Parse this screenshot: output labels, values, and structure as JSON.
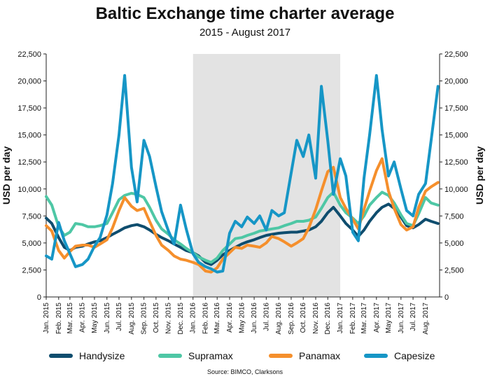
{
  "chart_data": {
    "type": "line",
    "title": "Baltic Exchange time charter average",
    "subtitle": "2015 - August 2017",
    "ylabel_left": "USD per day",
    "ylabel_right": "USD per day",
    "ylim": [
      0,
      22500
    ],
    "yticks": [
      "0",
      "2,500",
      "5,000",
      "7,500",
      "10,000",
      "12,500",
      "15,000",
      "17,500",
      "20,000",
      "22,500"
    ],
    "xlim": [
      "2015-01-01",
      "2017-09-05"
    ],
    "xticks": [
      {
        "label": "Jan. 2015",
        "date": "2015-01-01"
      },
      {
        "label": "Feb. 2015",
        "date": "2015-02-01"
      },
      {
        "label": "Mar. 2015",
        "date": "2015-03-01"
      },
      {
        "label": "Apr. 2015",
        "date": "2015-04-01"
      },
      {
        "label": "May 2015",
        "date": "2015-05-01"
      },
      {
        "label": "Jun. 2015",
        "date": "2015-06-01"
      },
      {
        "label": "Jul. 2015",
        "date": "2015-07-01"
      },
      {
        "label": "Aug. 2015",
        "date": "2015-08-01"
      },
      {
        "label": "Sep. 2015",
        "date": "2015-09-01"
      },
      {
        "label": "Oct. 2015",
        "date": "2015-10-01"
      },
      {
        "label": "Nov. 2015",
        "date": "2015-11-01"
      },
      {
        "label": "Dec. 2015",
        "date": "2015-12-01"
      },
      {
        "label": "Jan. 2016",
        "date": "2016-01-01"
      },
      {
        "label": "Feb. 2016",
        "date": "2016-02-01"
      },
      {
        "label": "Mar. 2016",
        "date": "2016-03-01"
      },
      {
        "label": "Apr. 2016",
        "date": "2016-04-01"
      },
      {
        "label": "May 2016",
        "date": "2016-05-01"
      },
      {
        "label": "Jun. 2016",
        "date": "2016-06-01"
      },
      {
        "label": "Jul. 2016",
        "date": "2016-07-01"
      },
      {
        "label": "Aug. 2016",
        "date": "2016-08-01"
      },
      {
        "label": "Sep. 2016",
        "date": "2016-09-01"
      },
      {
        "label": "Oct. 2016",
        "date": "2016-10-01"
      },
      {
        "label": "Nov. 2016",
        "date": "2016-11-01"
      },
      {
        "label": "Dec. 2016",
        "date": "2016-12-01"
      },
      {
        "label": "Jan. 2017",
        "date": "2017-01-01"
      },
      {
        "label": "Feb. 2017",
        "date": "2017-02-01"
      },
      {
        "label": "Mar. 2017",
        "date": "2017-03-01"
      },
      {
        "label": "Apr. 2017",
        "date": "2017-04-01"
      },
      {
        "label": "May 2017",
        "date": "2017-05-01"
      },
      {
        "label": "Jun. 2017",
        "date": "2017-06-01"
      },
      {
        "label": "Jul. 2017",
        "date": "2017-07-01"
      },
      {
        "label": "Aug. 2017",
        "date": "2017-08-01"
      }
    ],
    "shaded_period": [
      "2016-01-01",
      "2017-01-01"
    ],
    "grid": false,
    "legend_position": "bottom",
    "series": [
      {
        "name": "Handysize",
        "color": "#0f4d6e",
        "x": [
          "2015-01-01",
          "2015-01-15",
          "2015-02-01",
          "2015-02-15",
          "2015-03-01",
          "2015-03-15",
          "2015-04-01",
          "2015-04-15",
          "2015-05-01",
          "2015-05-15",
          "2015-06-01",
          "2015-06-15",
          "2015-07-01",
          "2015-07-15",
          "2015-08-01",
          "2015-08-15",
          "2015-09-01",
          "2015-09-15",
          "2015-10-01",
          "2015-10-15",
          "2015-11-01",
          "2015-11-15",
          "2015-12-01",
          "2015-12-15",
          "2016-01-01",
          "2016-01-15",
          "2016-02-01",
          "2016-02-15",
          "2016-03-01",
          "2016-03-15",
          "2016-04-01",
          "2016-04-15",
          "2016-05-01",
          "2016-05-15",
          "2016-06-01",
          "2016-06-15",
          "2016-07-01",
          "2016-07-15",
          "2016-08-01",
          "2016-08-15",
          "2016-09-01",
          "2016-09-15",
          "2016-10-01",
          "2016-10-15",
          "2016-11-01",
          "2016-11-15",
          "2016-12-01",
          "2016-12-15",
          "2017-01-01",
          "2017-01-15",
          "2017-02-01",
          "2017-02-15",
          "2017-03-01",
          "2017-03-15",
          "2017-04-01",
          "2017-04-15",
          "2017-05-01",
          "2017-05-15",
          "2017-06-01",
          "2017-06-15",
          "2017-07-01",
          "2017-07-15",
          "2017-08-01",
          "2017-08-15",
          "2017-09-01"
        ],
        "y": [
          7300,
          6800,
          5500,
          4600,
          4300,
          4600,
          4700,
          4900,
          5100,
          5200,
          5500,
          5800,
          6100,
          6400,
          6600,
          6700,
          6500,
          6200,
          5800,
          5500,
          5200,
          4900,
          4600,
          4300,
          4100,
          3800,
          3200,
          3000,
          3400,
          3900,
          4300,
          4600,
          4900,
          5100,
          5300,
          5500,
          5700,
          5800,
          5900,
          5950,
          6000,
          6000,
          6100,
          6200,
          6500,
          7000,
          7800,
          8300,
          7500,
          6800,
          6200,
          5600,
          6200,
          7000,
          7800,
          8300,
          8600,
          8200,
          7400,
          6600,
          6400,
          6700,
          7200,
          7000,
          6800
        ]
      },
      {
        "name": "Supramax",
        "color": "#4ec7a5",
        "x": [
          "2015-01-01",
          "2015-01-15",
          "2015-02-01",
          "2015-02-15",
          "2015-03-01",
          "2015-03-15",
          "2015-04-01",
          "2015-04-15",
          "2015-05-01",
          "2015-05-15",
          "2015-06-01",
          "2015-06-15",
          "2015-07-01",
          "2015-07-15",
          "2015-08-01",
          "2015-08-15",
          "2015-09-01",
          "2015-09-15",
          "2015-10-01",
          "2015-10-15",
          "2015-11-01",
          "2015-11-15",
          "2015-12-01",
          "2015-12-15",
          "2016-01-01",
          "2016-01-15",
          "2016-02-01",
          "2016-02-15",
          "2016-03-01",
          "2016-03-15",
          "2016-04-01",
          "2016-04-15",
          "2016-05-01",
          "2016-05-15",
          "2016-06-01",
          "2016-06-15",
          "2016-07-01",
          "2016-07-15",
          "2016-08-01",
          "2016-08-15",
          "2016-09-01",
          "2016-09-15",
          "2016-10-01",
          "2016-10-15",
          "2016-11-01",
          "2016-11-15",
          "2016-12-01",
          "2016-12-15",
          "2017-01-01",
          "2017-01-15",
          "2017-02-01",
          "2017-02-15",
          "2017-03-01",
          "2017-03-15",
          "2017-04-01",
          "2017-04-15",
          "2017-05-01",
          "2017-05-15",
          "2017-06-01",
          "2017-06-15",
          "2017-07-01",
          "2017-07-15",
          "2017-08-01",
          "2017-08-15",
          "2017-09-01"
        ],
        "y": [
          9300,
          8500,
          6500,
          5700,
          6000,
          6800,
          6700,
          6500,
          6500,
          6600,
          6800,
          7800,
          9000,
          9400,
          9600,
          9500,
          9200,
          8300,
          7100,
          6300,
          5800,
          5300,
          4900,
          4500,
          4100,
          3700,
          3400,
          3200,
          3600,
          4300,
          4900,
          5400,
          5500,
          5700,
          5900,
          6100,
          6200,
          6300,
          6400,
          6600,
          6800,
          7000,
          7000,
          7100,
          7400,
          8200,
          9200,
          9700,
          8500,
          7800,
          7300,
          6800,
          7500,
          8500,
          9200,
          9700,
          9400,
          8700,
          7600,
          6800,
          6600,
          7700,
          9200,
          8700,
          8500
        ]
      },
      {
        "name": "Panamax",
        "color": "#f58f2c",
        "x": [
          "2015-01-01",
          "2015-01-15",
          "2015-02-01",
          "2015-02-15",
          "2015-03-01",
          "2015-03-15",
          "2015-04-01",
          "2015-04-15",
          "2015-05-01",
          "2015-05-15",
          "2015-06-01",
          "2015-06-15",
          "2015-07-01",
          "2015-07-15",
          "2015-08-01",
          "2015-08-15",
          "2015-09-01",
          "2015-09-15",
          "2015-10-01",
          "2015-10-15",
          "2015-11-01",
          "2015-11-15",
          "2015-12-01",
          "2015-12-15",
          "2016-01-01",
          "2016-01-15",
          "2016-02-01",
          "2016-02-15",
          "2016-03-01",
          "2016-03-15",
          "2016-04-01",
          "2016-04-15",
          "2016-05-01",
          "2016-05-15",
          "2016-06-01",
          "2016-06-15",
          "2016-07-01",
          "2016-07-15",
          "2016-08-01",
          "2016-08-15",
          "2016-09-01",
          "2016-09-15",
          "2016-10-01",
          "2016-10-15",
          "2016-11-01",
          "2016-11-15",
          "2016-12-01",
          "2016-12-15",
          "2017-01-01",
          "2017-01-15",
          "2017-02-01",
          "2017-02-15",
          "2017-03-01",
          "2017-03-15",
          "2017-04-01",
          "2017-04-15",
          "2017-05-01",
          "2017-05-15",
          "2017-06-01",
          "2017-06-15",
          "2017-07-01",
          "2017-07-15",
          "2017-08-01",
          "2017-08-15",
          "2017-09-01"
        ],
        "y": [
          6600,
          6100,
          4300,
          3600,
          4200,
          4700,
          4800,
          4800,
          4600,
          4900,
          5300,
          6400,
          8000,
          9200,
          8400,
          8000,
          8200,
          7000,
          5700,
          4800,
          4300,
          3800,
          3500,
          3400,
          3200,
          3000,
          2400,
          2300,
          2700,
          3500,
          4100,
          4600,
          4500,
          4800,
          4700,
          4600,
          5000,
          5600,
          5400,
          5100,
          4700,
          5000,
          5400,
          6400,
          8100,
          9800,
          11600,
          12000,
          9200,
          8200,
          7200,
          6300,
          8100,
          9800,
          11700,
          12800,
          9800,
          8200,
          6700,
          6200,
          6500,
          8300,
          9800,
          10200,
          10600
        ]
      },
      {
        "name": "Capesize",
        "color": "#1696c6",
        "x": [
          "2015-01-01",
          "2015-01-15",
          "2015-02-01",
          "2015-02-15",
          "2015-03-01",
          "2015-03-15",
          "2015-04-01",
          "2015-04-15",
          "2015-05-01",
          "2015-05-15",
          "2015-06-01",
          "2015-06-15",
          "2015-07-01",
          "2015-07-15",
          "2015-08-01",
          "2015-08-15",
          "2015-09-01",
          "2015-09-15",
          "2015-10-01",
          "2015-10-15",
          "2015-11-01",
          "2015-11-15",
          "2015-12-01",
          "2015-12-15",
          "2016-01-01",
          "2016-01-15",
          "2016-02-01",
          "2016-02-15",
          "2016-03-01",
          "2016-03-15",
          "2016-04-01",
          "2016-04-15",
          "2016-05-01",
          "2016-05-15",
          "2016-06-01",
          "2016-06-15",
          "2016-07-01",
          "2016-07-15",
          "2016-08-01",
          "2016-08-15",
          "2016-09-01",
          "2016-09-15",
          "2016-10-01",
          "2016-10-15",
          "2016-11-01",
          "2016-11-15",
          "2016-12-01",
          "2016-12-15",
          "2017-01-01",
          "2017-01-15",
          "2017-02-01",
          "2017-02-15",
          "2017-03-01",
          "2017-03-15",
          "2017-04-01",
          "2017-04-15",
          "2017-05-01",
          "2017-05-15",
          "2017-06-01",
          "2017-06-15",
          "2017-07-01",
          "2017-07-15",
          "2017-08-01",
          "2017-08-15",
          "2017-09-01"
        ],
        "y": [
          3800,
          3500,
          6900,
          5200,
          4000,
          2800,
          3000,
          3500,
          4700,
          5500,
          7600,
          10500,
          15000,
          20500,
          12000,
          8800,
          14500,
          13000,
          10200,
          7900,
          6100,
          4900,
          8500,
          6300,
          4000,
          3200,
          2800,
          2600,
          2300,
          2400,
          5900,
          7000,
          6500,
          7400,
          6800,
          7500,
          6200,
          8000,
          7500,
          7800,
          11500,
          14500,
          13000,
          15000,
          11000,
          19500,
          14500,
          9500,
          12800,
          11200,
          6000,
          5200,
          11000,
          15000,
          20500,
          15500,
          11200,
          12500,
          10000,
          8000,
          7500,
          9500,
          10500,
          14500,
          19500
        ]
      }
    ],
    "source": "Source: BIMCO, Clarksons"
  }
}
